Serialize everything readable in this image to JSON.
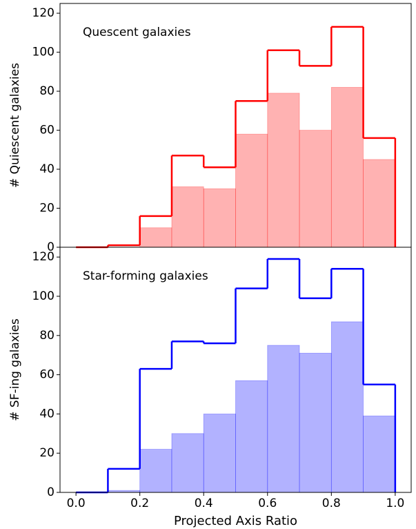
{
  "chart_data": [
    {
      "type": "histogram",
      "annotation": "Quescent galaxies",
      "ylabel": "# Quiescent galaxies",
      "bins": [
        0,
        0.1,
        0.2,
        0.3,
        0.4,
        0.5,
        0.6,
        0.7,
        0.8,
        0.9,
        1.0
      ],
      "series": [
        {
          "histtype": "step",
          "color": "#ff0000",
          "values": [
            0,
            1,
            16,
            47,
            41,
            75,
            101,
            93,
            113,
            56
          ]
        },
        {
          "histtype": "filled",
          "color": "#ff0000",
          "alpha": 0.3,
          "values": [
            0,
            0,
            10,
            31,
            30,
            58,
            79,
            60,
            82,
            45
          ]
        }
      ],
      "xlim": [
        -0.05,
        1.05
      ],
      "ylim": [
        0,
        125
      ],
      "yticks": [
        0,
        20,
        40,
        60,
        80,
        100,
        120
      ]
    },
    {
      "type": "histogram",
      "annotation": "Star-forming galaxies",
      "ylabel": "# SF-ing galaxies",
      "xlabel": "Projected Axis Ratio",
      "bins": [
        0,
        0.1,
        0.2,
        0.3,
        0.4,
        0.5,
        0.6,
        0.7,
        0.8,
        0.9,
        1.0
      ],
      "series": [
        {
          "histtype": "step",
          "color": "#0000ff",
          "values": [
            0,
            12,
            63,
            77,
            76,
            104,
            119,
            99,
            114,
            55
          ]
        },
        {
          "histtype": "filled",
          "color": "#0000ff",
          "alpha": 0.3,
          "values": [
            0,
            1,
            22,
            30,
            40,
            57,
            75,
            71,
            87,
            39
          ]
        }
      ],
      "xlim": [
        -0.05,
        1.05
      ],
      "ylim": [
        0,
        125
      ],
      "yticks": [
        0,
        20,
        40,
        60,
        80,
        100,
        120
      ],
      "xticks": [
        {
          "value": 0,
          "label": "0.0"
        },
        {
          "value": 0.2,
          "label": "0.2"
        },
        {
          "value": 0.4,
          "label": "0.4"
        },
        {
          "value": 0.6,
          "label": "0.6"
        },
        {
          "value": 0.8,
          "label": "0.8"
        },
        {
          "value": 1.0,
          "label": "1.0"
        }
      ]
    }
  ]
}
